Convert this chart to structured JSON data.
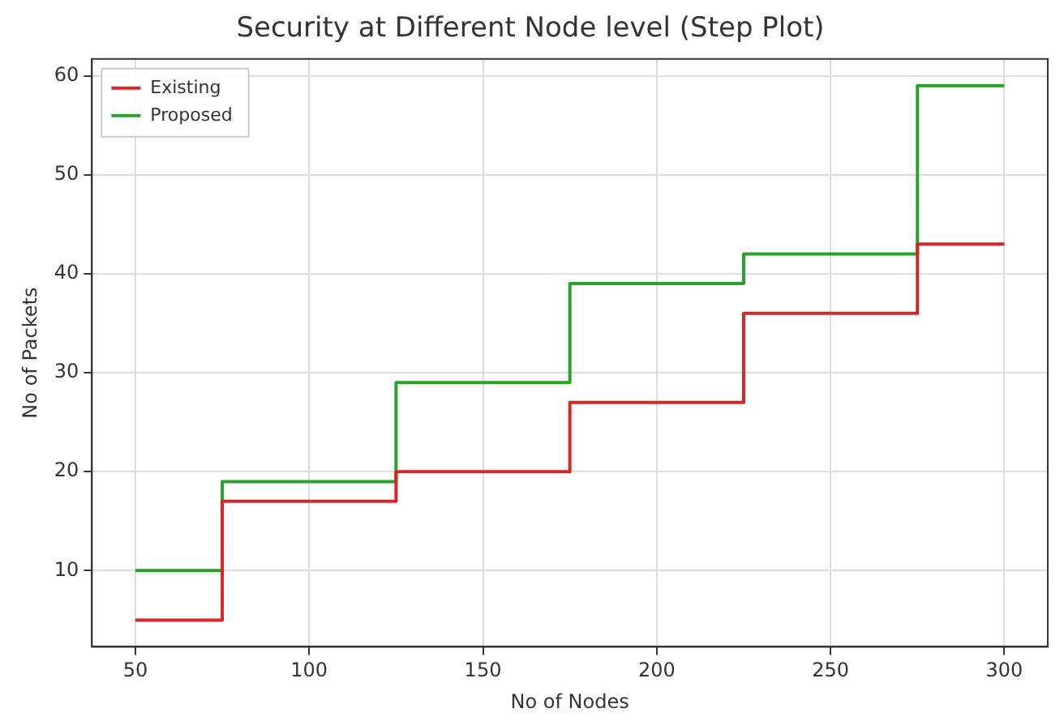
{
  "chart_data": {
    "type": "step",
    "title": "Security at Different Node level (Step Plot)",
    "xlabel": "No of Nodes",
    "ylabel": "No of Packets",
    "x": [
      50,
      100,
      150,
      200,
      250,
      300
    ],
    "series": [
      {
        "name": "Existing",
        "color": "#d62728",
        "values": [
          5,
          17,
          20,
          27,
          36,
          43
        ]
      },
      {
        "name": "Proposed",
        "color": "#2ca02c",
        "values": [
          10,
          19,
          29,
          39,
          42,
          59
        ]
      }
    ],
    "xlim": [
      37.5,
      312.5
    ],
    "xticks": [
      50,
      100,
      150,
      200,
      250,
      300
    ],
    "ylim": [
      2.3,
      61.7
    ],
    "yticks": [
      10,
      20,
      30,
      40,
      50,
      60
    ],
    "grid": true,
    "legend": "top left",
    "line_style": "solid"
  }
}
